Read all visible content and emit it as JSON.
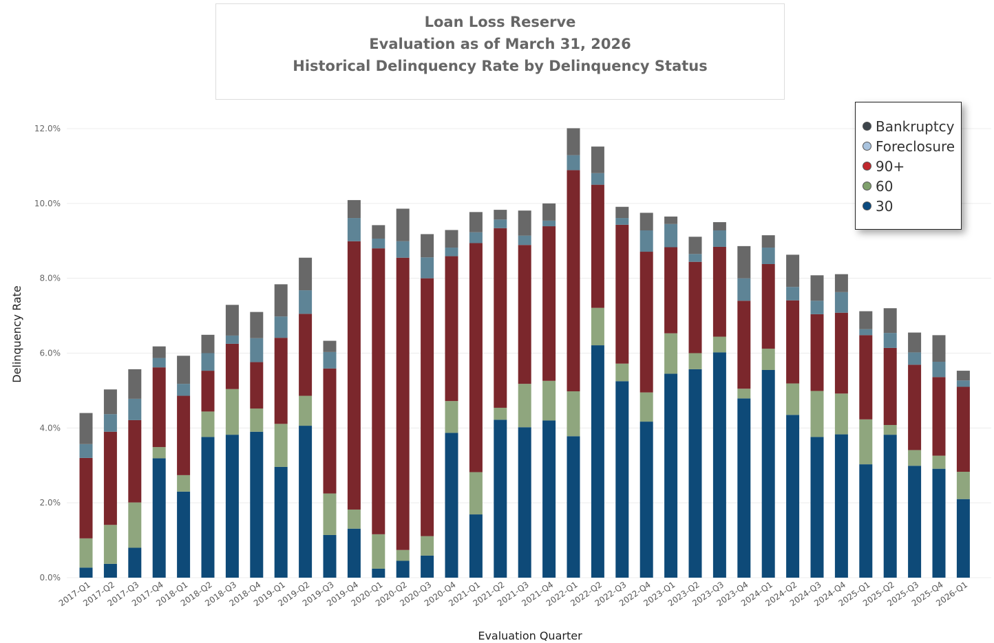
{
  "title": {
    "line1": "Loan Loss Reserve",
    "line2": "Evaluation as of March 31, 2026",
    "line3": "Historical Delinquency Rate by Delinquency Status"
  },
  "legend": [
    {
      "name": "Bankruptcy",
      "color": "#3d444b"
    },
    {
      "name": "Foreclosure",
      "color": "#a9c3de"
    },
    {
      "name": "90+",
      "color": "#c0282d"
    },
    {
      "name": "60",
      "color": "#7fa06c"
    },
    {
      "name": "30",
      "color": "#0b4b80"
    }
  ],
  "chart_data": {
    "type": "bar",
    "stacked": true,
    "xlabel": "Evaluation Quarter",
    "ylabel": "Delinquency Rate",
    "ylim": [
      0,
      12
    ],
    "yticks": [
      "0.0%",
      "2.0%",
      "4.0%",
      "6.0%",
      "8.0%",
      "10.0%",
      "12.0%"
    ],
    "grid": true,
    "legend_position": "top-right",
    "categories": [
      "2017-Q1",
      "2017-Q2",
      "2017-Q3",
      "2017-Q4",
      "2018-Q1",
      "2018-Q2",
      "2018-Q3",
      "2018-Q4",
      "2019-Q1",
      "2019-Q2",
      "2019-Q3",
      "2019-Q4",
      "2020-Q1",
      "2020-Q2",
      "2020-Q3",
      "2020-Q4",
      "2021-Q1",
      "2021-Q2",
      "2021-Q3",
      "2021-Q4",
      "2022-Q1",
      "2022-Q2",
      "2022-Q3",
      "2022-Q4",
      "2023-Q1",
      "2023-Q2",
      "2023-Q3",
      "2023-Q4",
      "2024-Q1",
      "2024-Q2",
      "2024-Q3",
      "2024-Q4",
      "2025-Q1",
      "2025-Q2",
      "2025-Q3",
      "2025-Q4",
      "2026-Q1"
    ],
    "series": [
      {
        "name": "30",
        "color": "#0e4a78",
        "values": [
          0.27,
          0.37,
          0.8,
          3.19,
          2.3,
          3.76,
          3.82,
          3.9,
          2.96,
          4.06,
          1.14,
          1.31,
          0.24,
          0.45,
          0.59,
          3.87,
          1.69,
          4.22,
          4.02,
          4.2,
          3.78,
          6.21,
          5.25,
          4.17,
          5.45,
          5.57,
          6.02,
          4.79,
          5.55,
          4.35,
          3.76,
          3.83,
          3.03,
          3.82,
          2.99,
          2.91,
          2.1
        ]
      },
      {
        "name": "60",
        "color": "#8fa67e",
        "values": [
          0.78,
          1.04,
          1.21,
          0.3,
          0.44,
          0.68,
          1.22,
          0.62,
          1.15,
          0.8,
          1.11,
          0.51,
          0.92,
          0.29,
          0.52,
          0.85,
          1.13,
          0.32,
          1.16,
          1.06,
          1.2,
          1.0,
          0.47,
          0.78,
          1.08,
          0.43,
          0.42,
          0.26,
          0.57,
          0.84,
          1.23,
          1.09,
          1.2,
          0.26,
          0.42,
          0.35,
          0.73
        ]
      },
      {
        "name": "90+",
        "color": "#7b272c",
        "values": [
          2.15,
          2.49,
          2.2,
          2.13,
          2.12,
          1.09,
          1.21,
          1.24,
          2.3,
          2.19,
          3.34,
          7.17,
          7.64,
          7.81,
          6.89,
          3.87,
          6.12,
          4.8,
          3.71,
          4.13,
          5.91,
          3.29,
          3.71,
          3.76,
          2.3,
          2.44,
          2.4,
          2.35,
          2.26,
          2.22,
          2.05,
          2.16,
          2.25,
          2.06,
          2.28,
          2.1,
          2.27
        ]
      },
      {
        "name": "Foreclosure",
        "color": "#5e8496",
        "values": [
          0.37,
          0.47,
          0.57,
          0.25,
          0.32,
          0.47,
          0.22,
          0.64,
          0.57,
          0.63,
          0.44,
          0.62,
          0.26,
          0.44,
          0.56,
          0.23,
          0.29,
          0.23,
          0.25,
          0.15,
          0.4,
          0.31,
          0.18,
          0.57,
          0.62,
          0.21,
          0.44,
          0.6,
          0.44,
          0.36,
          0.36,
          0.55,
          0.16,
          0.4,
          0.33,
          0.41,
          0.17
        ]
      },
      {
        "name": "Bankruptcy",
        "color": "#686868",
        "values": [
          0.83,
          0.66,
          0.79,
          0.31,
          0.75,
          0.49,
          0.82,
          0.7,
          0.86,
          0.87,
          0.3,
          0.48,
          0.36,
          0.87,
          0.62,
          0.47,
          0.54,
          0.26,
          0.67,
          0.46,
          0.72,
          0.71,
          0.3,
          0.47,
          0.2,
          0.46,
          0.22,
          0.86,
          0.33,
          0.86,
          0.68,
          0.48,
          0.48,
          0.66,
          0.53,
          0.71,
          0.26
        ]
      }
    ]
  }
}
